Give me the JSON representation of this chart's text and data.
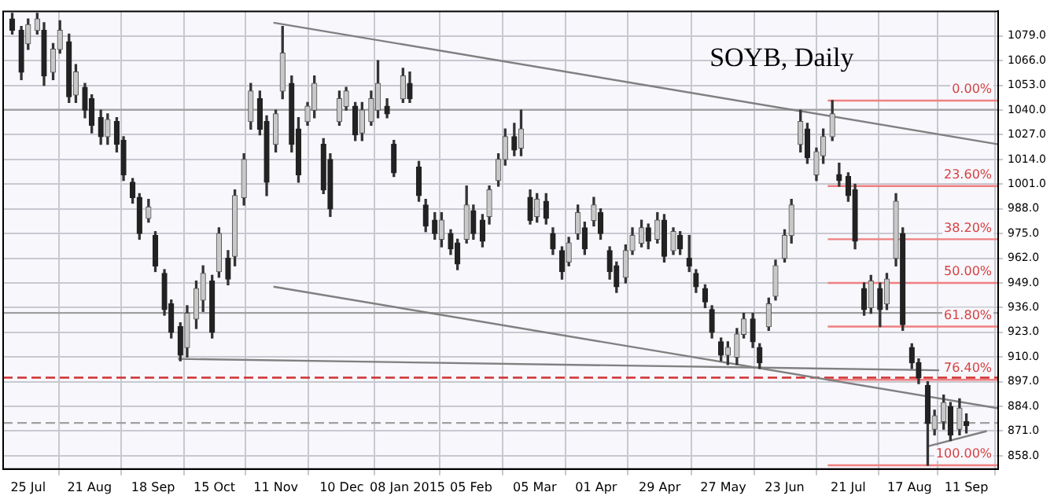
{
  "chart_data": {
    "type": "candlestick",
    "title": "SOYB, Daily",
    "x": [
      "2014-07-18",
      "2014-07-22",
      "2014-07-25",
      "2014-07-29",
      "2014-08-01",
      "2014-08-05",
      "2014-08-08",
      "2014-08-12",
      "2014-08-15",
      "2014-08-19",
      "2014-08-22",
      "2014-08-26",
      "2014-08-29",
      "2014-09-02",
      "2014-09-05",
      "2014-09-09",
      "2014-09-12",
      "2014-09-16",
      "2014-09-19",
      "2014-09-23",
      "2014-09-26",
      "2014-09-30",
      "2014-10-03",
      "2014-10-07",
      "2014-10-10",
      "2014-10-14",
      "2014-10-17",
      "2014-10-21",
      "2014-10-24",
      "2014-10-28",
      "2014-10-31",
      "2014-11-04",
      "2014-11-07",
      "2014-11-11",
      "2014-11-14",
      "2014-11-18",
      "2014-11-21",
      "2014-11-25",
      "2014-11-28",
      "2014-12-02",
      "2014-12-05",
      "2014-12-09",
      "2014-12-12",
      "2014-12-16",
      "2014-12-19",
      "2014-12-23",
      "2014-12-26",
      "2014-12-30",
      "2015-01-02",
      "2015-01-06",
      "2015-01-09",
      "2015-01-13",
      "2015-01-16",
      "2015-01-20",
      "2015-01-23",
      "2015-01-27",
      "2015-01-30",
      "2015-02-03",
      "2015-02-06",
      "2015-02-10",
      "2015-02-13",
      "2015-02-17",
      "2015-02-20",
      "2015-02-24",
      "2015-02-27",
      "2015-03-03",
      "2015-03-06",
      "2015-03-10",
      "2015-03-13",
      "2015-03-17",
      "2015-03-20",
      "2015-03-24",
      "2015-03-27",
      "2015-03-31",
      "2015-04-03",
      "2015-04-07",
      "2015-04-10",
      "2015-04-14",
      "2015-04-17",
      "2015-04-21",
      "2015-04-24",
      "2015-04-28",
      "2015-05-01",
      "2015-05-05",
      "2015-05-08",
      "2015-05-12",
      "2015-05-15",
      "2015-05-19",
      "2015-05-22",
      "2015-05-26",
      "2015-05-29",
      "2015-06-02",
      "2015-06-05",
      "2015-06-09",
      "2015-06-12",
      "2015-06-16",
      "2015-06-19",
      "2015-06-23",
      "2015-06-26",
      "2015-06-30",
      "2015-07-03",
      "2015-07-07",
      "2015-07-10",
      "2015-07-14",
      "2015-07-17",
      "2015-07-21",
      "2015-07-24",
      "2015-07-28",
      "2015-07-31",
      "2015-08-04",
      "2015-08-07",
      "2015-08-11",
      "2015-08-14",
      "2015-08-18",
      "2015-08-21",
      "2015-08-25",
      "2015-08-28",
      "2015-09-01",
      "2015-09-04",
      "2015-09-08",
      "2015-09-11"
    ],
    "ohlc": [
      [
        1088,
        1091,
        1080,
        1082
      ],
      [
        1082,
        1084,
        1056,
        1060
      ],
      [
        1075,
        1088,
        1072,
        1085
      ],
      [
        1082,
        1091,
        1080,
        1088
      ],
      [
        1082,
        1086,
        1053,
        1058
      ],
      [
        1060,
        1075,
        1056,
        1072
      ],
      [
        1072,
        1087,
        1070,
        1082
      ],
      [
        1076,
        1080,
        1044,
        1047
      ],
      [
        1048,
        1064,
        1044,
        1060
      ],
      [
        1052,
        1054,
        1036,
        1040
      ],
      [
        1046,
        1048,
        1028,
        1032
      ],
      [
        1036,
        1040,
        1022,
        1026
      ],
      [
        1026,
        1038,
        1022,
        1035
      ],
      [
        1034,
        1036,
        1018,
        1022
      ],
      [
        1024,
        1026,
        1003,
        1006
      ],
      [
        1002,
        1004,
        991,
        994
      ],
      [
        994,
        996,
        972,
        975
      ],
      [
        983,
        993,
        981,
        989
      ],
      [
        974,
        976,
        955,
        958
      ],
      [
        954,
        956,
        932,
        935
      ],
      [
        938,
        940,
        920,
        923
      ],
      [
        926,
        928,
        908,
        911
      ],
      [
        915,
        937,
        910,
        933
      ],
      [
        930,
        950,
        925,
        946
      ],
      [
        940,
        958,
        934,
        954
      ],
      [
        950,
        953,
        920,
        923
      ],
      [
        955,
        978,
        952,
        975
      ],
      [
        962,
        966,
        948,
        951
      ],
      [
        963,
        998,
        958,
        995
      ],
      [
        994,
        1017,
        990,
        1014
      ],
      [
        1034,
        1054,
        1030,
        1050
      ],
      [
        1046,
        1050,
        1027,
        1030
      ],
      [
        1034,
        1037,
        995,
        1002
      ],
      [
        1022,
        1040,
        1018,
        1038
      ],
      [
        1050,
        1084,
        1046,
        1070
      ],
      [
        1054,
        1058,
        1018,
        1022
      ],
      [
        1030,
        1036,
        1002,
        1006
      ],
      [
        1034,
        1044,
        1032,
        1042
      ],
      [
        1040,
        1058,
        1036,
        1054
      ],
      [
        1022,
        1025,
        996,
        998
      ],
      [
        1014,
        1017,
        984,
        988
      ],
      [
        1034,
        1050,
        1032,
        1046
      ],
      [
        1042,
        1052,
        1040,
        1050
      ],
      [
        1042,
        1044,
        1024,
        1027
      ],
      [
        1028,
        1044,
        1024,
        1040
      ],
      [
        1034,
        1050,
        1032,
        1046
      ],
      [
        1040,
        1066,
        1036,
        1054
      ],
      [
        1042,
        1046,
        1036,
        1038
      ],
      [
        1022,
        1024,
        1005,
        1007
      ],
      [
        1046,
        1062,
        1044,
        1058
      ],
      [
        1054,
        1060,
        1044,
        1046
      ],
      [
        1010,
        1013,
        992,
        995
      ],
      [
        990,
        993,
        976,
        979
      ],
      [
        982,
        986,
        972,
        975
      ],
      [
        972,
        986,
        968,
        982
      ],
      [
        975,
        977,
        964,
        967
      ],
      [
        970,
        972,
        956,
        959
      ],
      [
        972,
        1000,
        970,
        990
      ],
      [
        987,
        990,
        972,
        975
      ],
      [
        982,
        985,
        968,
        971
      ],
      [
        984,
        1000,
        980,
        998
      ],
      [
        1003,
        1017,
        1000,
        1014
      ],
      [
        1014,
        1030,
        1011,
        1026
      ],
      [
        1026,
        1033,
        1016,
        1019
      ],
      [
        1020,
        1040,
        1016,
        1030
      ],
      [
        994,
        998,
        980,
        982
      ],
      [
        984,
        996,
        981,
        993
      ],
      [
        992,
        996,
        980,
        983
      ],
      [
        975,
        978,
        964,
        967
      ],
      [
        966,
        968,
        951,
        955
      ],
      [
        960,
        973,
        958,
        970
      ],
      [
        975,
        990,
        972,
        986
      ],
      [
        978,
        981,
        964,
        967
      ],
      [
        982,
        994,
        979,
        990
      ],
      [
        986,
        988,
        972,
        975
      ],
      [
        966,
        968,
        951,
        955
      ],
      [
        958,
        960,
        944,
        947
      ],
      [
        952,
        969,
        949,
        966
      ],
      [
        966,
        978,
        964,
        974
      ],
      [
        970,
        982,
        968,
        978
      ],
      [
        978,
        980,
        967,
        971
      ],
      [
        972,
        986,
        970,
        982
      ],
      [
        982,
        985,
        960,
        963
      ],
      [
        966,
        978,
        964,
        976
      ],
      [
        974,
        976,
        964,
        967
      ],
      [
        962,
        974,
        955,
        958
      ],
      [
        954,
        956,
        944,
        947
      ],
      [
        946,
        948,
        936,
        939
      ],
      [
        935,
        937,
        920,
        923
      ],
      [
        918,
        920,
        908,
        911
      ],
      [
        911,
        918,
        906,
        915
      ],
      [
        910,
        925,
        906,
        922
      ],
      [
        922,
        933,
        920,
        930
      ],
      [
        930,
        933,
        915,
        918
      ],
      [
        915,
        917,
        904,
        907
      ],
      [
        926,
        941,
        924,
        938
      ],
      [
        942,
        961,
        940,
        958
      ],
      [
        962,
        977,
        960,
        974
      ],
      [
        974,
        993,
        970,
        990
      ],
      [
        1022,
        1040,
        1018,
        1034
      ],
      [
        1030,
        1033,
        1012,
        1015
      ],
      [
        1006,
        1020,
        1003,
        1018
      ],
      [
        1016,
        1030,
        1012,
        1026
      ],
      [
        1026,
        1045,
        1024,
        1038
      ],
      [
        1006,
        1012,
        1000,
        1003
      ],
      [
        1005,
        1007,
        992,
        995
      ],
      [
        998,
        1001,
        967,
        971
      ],
      [
        946,
        949,
        932,
        935
      ],
      [
        936,
        953,
        933,
        950
      ],
      [
        946,
        949,
        926,
        935
      ],
      [
        938,
        954,
        935,
        951
      ],
      [
        962,
        996,
        958,
        992
      ],
      [
        975,
        978,
        924,
        927
      ],
      [
        915,
        917,
        904,
        907
      ],
      [
        907,
        909,
        896,
        899
      ],
      [
        895,
        897,
        853,
        875
      ],
      [
        872,
        882,
        869,
        879
      ],
      [
        876,
        890,
        872,
        886
      ],
      [
        884,
        886,
        866,
        869
      ],
      [
        872,
        888,
        869,
        883
      ],
      [
        876,
        880,
        870,
        874
      ]
    ],
    "series": [
      {
        "type": "line",
        "color": "#808080",
        "x": [
          "2014-11-10",
          "2015-09-25"
        ],
        "values": [
          1086,
          1022
        ]
      },
      {
        "type": "line",
        "color": "#808080",
        "x": [
          "2014-11-10",
          "2015-09-25"
        ],
        "values": [
          947,
          883
        ]
      },
      {
        "type": "line",
        "color": "#808080",
        "x": [
          "2014-09-29",
          "2015-08-30"
        ],
        "values": [
          909,
          903
        ]
      },
      {
        "type": "line",
        "color": "#808080",
        "x": [
          "2015-08-25",
          "2015-09-20"
        ],
        "values": [
          863,
          871
        ]
      },
      {
        "type": "line",
        "name": "0.00%",
        "color": "#f08080",
        "x": [
          "2015-07-12",
          "2015-09-25"
        ],
        "values": [
          1045,
          1045
        ]
      },
      {
        "type": "line",
        "name": "23.60%",
        "color": "#f08080",
        "x": [
          "2015-07-12",
          "2015-09-25"
        ],
        "values": [
          1000,
          1000
        ]
      },
      {
        "type": "line",
        "name": "38.20%",
        "color": "#f08080",
        "x": [
          "2015-07-12",
          "2015-09-25"
        ],
        "values": [
          972,
          972
        ]
      },
      {
        "type": "line",
        "name": "50.00%",
        "color": "#f08080",
        "x": [
          "2015-07-12",
          "2015-09-25"
        ],
        "values": [
          949,
          949
        ]
      },
      {
        "type": "line",
        "name": "61.80%",
        "color": "#f08080",
        "x": [
          "2015-07-12",
          "2015-09-25"
        ],
        "values": [
          926,
          926
        ]
      },
      {
        "type": "line",
        "name": "76.40%",
        "color": "#f08080",
        "x": [
          "2015-07-12",
          "2015-09-25"
        ],
        "values": [
          898,
          898
        ]
      },
      {
        "type": "line",
        "name": "100.00%",
        "color": "#f08080",
        "x": [
          "2015-07-12",
          "2015-09-25"
        ],
        "values": [
          853,
          853
        ]
      }
    ],
    "ref_lines": [
      {
        "axis": "y",
        "value": 1040.2,
        "color": "#a0a0a0"
      },
      {
        "axis": "y",
        "value": 933.2,
        "color": "#a0a0a0"
      },
      {
        "axis": "y",
        "value": 899.1,
        "color": "#d03030",
        "line_style": "dashed"
      },
      {
        "axis": "y",
        "value": 875.3,
        "color": "#a0a0a0",
        "line_style": "dashed"
      }
    ],
    "xlim": [
      "2014-07-14",
      "2015-09-25"
    ],
    "xticks": [
      {
        "value": "2014-07-25",
        "label": "25 Jul"
      },
      {
        "value": "2014-08-21",
        "label": "21 Aug"
      },
      {
        "value": "2014-09-18",
        "label": "18 Sep"
      },
      {
        "value": "2014-10-15",
        "label": "15 Oct"
      },
      {
        "value": "2014-11-11",
        "label": "11 Nov"
      },
      {
        "value": "2014-12-10",
        "label": "10 Dec"
      },
      {
        "value": "2015-01-08",
        "label": "08 Jan 2015"
      },
      {
        "value": "2015-02-05",
        "label": "05 Feb"
      },
      {
        "value": "2015-03-05",
        "label": "05 Mar"
      },
      {
        "value": "2015-04-01",
        "label": "01 Apr"
      },
      {
        "value": "2015-04-29",
        "label": "29 Apr"
      },
      {
        "value": "2015-05-27",
        "label": "27 May"
      },
      {
        "value": "2015-06-23",
        "label": "23 Jun"
      },
      {
        "value": "2015-07-21",
        "label": "21 Jul"
      },
      {
        "value": "2015-08-17",
        "label": "17 Aug"
      },
      {
        "value": "2015-09-11",
        "label": "11 Sep"
      }
    ],
    "ylim": [
      851,
      1092
    ],
    "yticks": [
      {
        "value": 1079,
        "label": "1079.0"
      },
      {
        "value": 1066,
        "label": "1066.0"
      },
      {
        "value": 1053,
        "label": "1053.0"
      },
      {
        "value": 1040,
        "label": "1040.0"
      },
      {
        "value": 1027,
        "label": "1027.0"
      },
      {
        "value": 1014,
        "label": "1014.0"
      },
      {
        "value": 1001,
        "label": "1001.0"
      },
      {
        "value": 988,
        "label": "988.0"
      },
      {
        "value": 975,
        "label": "975.0"
      },
      {
        "value": 962,
        "label": "962.0"
      },
      {
        "value": 949,
        "label": "949.0"
      },
      {
        "value": 936,
        "label": "936.0"
      },
      {
        "value": 923,
        "label": "923.0"
      },
      {
        "value": 910,
        "label": "910.0"
      },
      {
        "value": 897,
        "label": "897.0"
      },
      {
        "value": 884,
        "label": "884.0"
      },
      {
        "value": 871,
        "label": "871.0"
      },
      {
        "value": 858,
        "label": "858.0"
      }
    ],
    "grid": true,
    "legend": false
  }
}
